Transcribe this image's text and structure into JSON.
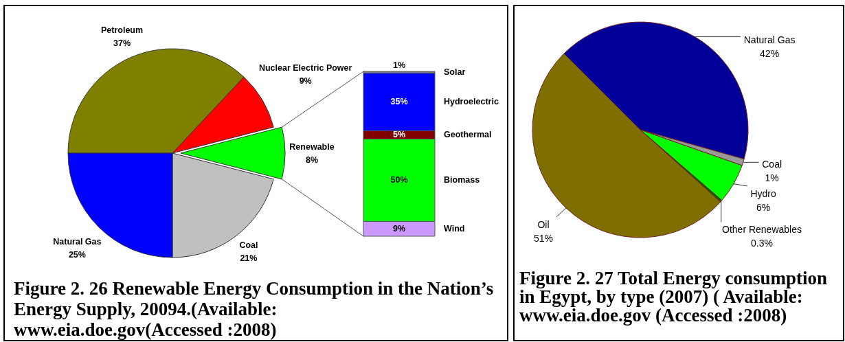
{
  "chart_data": [
    {
      "type": "pie",
      "title": "Figure 2. 26 Renewable Energy Consumption in the Nation’s Energy Supply, 20094.(Available: www.eia.doe.gov(Accessed :2008)",
      "categories": [
        "Petroleum",
        "Nuclear Electric Power",
        "Renewable",
        "Coal",
        "Natural Gas"
      ],
      "values": [
        37,
        9,
        8,
        21,
        25
      ],
      "value_labels": [
        "37%",
        "9%",
        "8%",
        "21%",
        "25%"
      ],
      "colors": [
        "#808000",
        "#ff0000",
        "#00ff00",
        "#c0c0c0",
        "#0000ff"
      ]
    },
    {
      "type": "bar",
      "stacked": true,
      "categories": [
        null
      ],
      "series": [
        {
          "name": "Wind",
          "color": "#cc99ff",
          "values": [
            9
          ],
          "value_labels": [
            "9%"
          ]
        },
        {
          "name": "Biomass",
          "color": "#00ff00",
          "values": [
            50
          ],
          "value_labels": [
            "50%"
          ]
        },
        {
          "name": "Geothermal",
          "color": "#800000",
          "values": [
            5
          ],
          "value_labels": [
            "5%"
          ]
        },
        {
          "name": "Hydroelectric",
          "color": "#0000ff",
          "values": [
            35
          ],
          "value_labels": [
            "35%"
          ]
        },
        {
          "name": "Solar",
          "color": "#808080",
          "values": [
            1
          ],
          "value_labels": [
            "1%"
          ]
        }
      ]
    },
    {
      "type": "pie",
      "title": "Figure 2. 27 Total Energy consumption in Egypt, by type (2007) ( Available: www.eia.doe.gov (Accessed :2008)",
      "categories": [
        "Natural Gas",
        "Coal",
        "Hydro",
        "Other Renewables",
        "Oil"
      ],
      "values": [
        42,
        1,
        6,
        0.3,
        51
      ],
      "value_labels": [
        "42%",
        "1%",
        "6%",
        "0.3%",
        "51%"
      ],
      "colors": [
        "#000099",
        "#999999",
        "#00ff00",
        "#006600",
        "#7f6f00"
      ]
    }
  ]
}
